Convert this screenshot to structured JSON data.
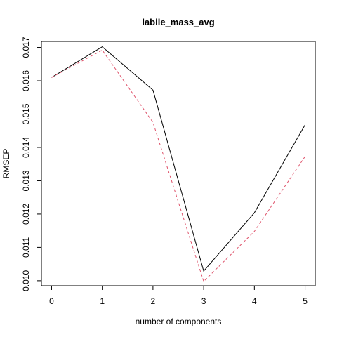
{
  "chart_data": {
    "type": "line",
    "title": "labile_mass_avg",
    "xlabel": "number of components",
    "ylabel": "RMSEP",
    "x": [
      0,
      1,
      2,
      3,
      4,
      5
    ],
    "xlim": [
      -0.2,
      5.2
    ],
    "ylim": [
      0.00985,
      0.01718
    ],
    "xticks": [
      0,
      1,
      2,
      3,
      4,
      5
    ],
    "xtick_labels": [
      "0",
      "1",
      "2",
      "3",
      "4",
      "5"
    ],
    "yticks": [
      0.01,
      0.011,
      0.012,
      0.013,
      0.014,
      0.015,
      0.016,
      0.017
    ],
    "ytick_labels": [
      "0.010",
      "0.011",
      "0.012",
      "0.013",
      "0.014",
      "0.015",
      "0.016",
      "0.017"
    ],
    "grid": false,
    "series": [
      {
        "values": [
          0.0161,
          0.01702,
          0.01572,
          0.01029,
          0.01204,
          0.01468
        ],
        "color": "#000000",
        "style": "solid"
      },
      {
        "values": [
          0.0161,
          0.01692,
          0.01475,
          0.00998,
          0.01148,
          0.01373
        ],
        "color": "#DF536B",
        "style": "dashed"
      }
    ]
  }
}
